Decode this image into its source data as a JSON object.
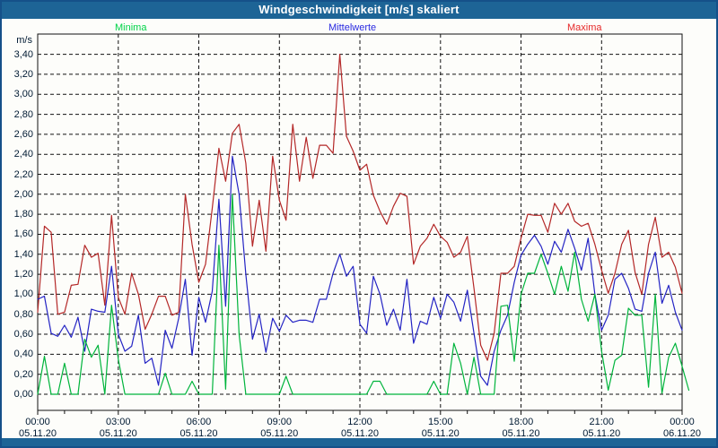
{
  "window": {
    "title": "Windgeschwindigkeit [m/s] skaliert"
  },
  "colors": {
    "titlebar_bg": "#1d6496",
    "frame_border": "#155089",
    "plot_bg": "#fdfdfa",
    "grid": "#111111",
    "axis_text": "#001a33",
    "title_text": "#ffffff"
  },
  "chart_data": {
    "type": "line",
    "title": "Windgeschwindigkeit [m/s] skaliert",
    "xlabel": "",
    "ylabel": "m/s",
    "ylim": [
      0,
      3.4
    ],
    "grid": "dashed",
    "legend_position": "top",
    "x_step_minutes": 15,
    "x_start": "05.11.20 00:00",
    "x_end": "06.11.20 00:00",
    "y_ticks": [
      {
        "label": "0,00",
        "value": 0.0
      },
      {
        "label": "0,20",
        "value": 0.2
      },
      {
        "label": "0,40",
        "value": 0.4
      },
      {
        "label": "0,60",
        "value": 0.6
      },
      {
        "label": "0,80",
        "value": 0.8
      },
      {
        "label": "1,00",
        "value": 1.0
      },
      {
        "label": "1,20",
        "value": 1.2
      },
      {
        "label": "1,40",
        "value": 1.4
      },
      {
        "label": "1,60",
        "value": 1.6
      },
      {
        "label": "1,80",
        "value": 1.8
      },
      {
        "label": "2,00",
        "value": 2.0
      },
      {
        "label": "2,20",
        "value": 2.2
      },
      {
        "label": "2,40",
        "value": 2.4
      },
      {
        "label": "2,60",
        "value": 2.6
      },
      {
        "label": "2,80",
        "value": 2.8
      },
      {
        "label": "3,00",
        "value": 3.0
      },
      {
        "label": "3,20",
        "value": 3.2
      },
      {
        "label": "3,40",
        "value": 3.4
      }
    ],
    "x_ticks": [
      {
        "time": "00:00",
        "date": "05.11.20",
        "hour": 0
      },
      {
        "time": "03:00",
        "date": "05.11.20",
        "hour": 3
      },
      {
        "time": "06:00",
        "date": "05.11.20",
        "hour": 6
      },
      {
        "time": "09:00",
        "date": "05.11.20",
        "hour": 9
      },
      {
        "time": "12:00",
        "date": "05.11.20",
        "hour": 12
      },
      {
        "time": "15:00",
        "date": "05.11.20",
        "hour": 15
      },
      {
        "time": "18:00",
        "date": "05.11.20",
        "hour": 18
      },
      {
        "time": "21:00",
        "date": "05.11.20",
        "hour": 21
      },
      {
        "time": "00:00",
        "date": "06.11.20",
        "hour": 24
      }
    ],
    "series": [
      {
        "name": "Maxima",
        "color": "#b42828",
        "legend_color": "#e62929",
        "values": [
          0.82,
          1.68,
          1.62,
          0.8,
          0.82,
          1.09,
          1.1,
          1.49,
          1.37,
          1.41,
          0.89,
          1.79,
          0.97,
          0.8,
          1.21,
          1.0,
          0.65,
          0.8,
          0.98,
          0.98,
          0.79,
          0.82,
          2.0,
          1.5,
          1.12,
          1.3,
          1.86,
          2.46,
          2.13,
          2.61,
          2.7,
          2.31,
          1.48,
          1.94,
          1.43,
          2.38,
          1.94,
          1.74,
          2.7,
          2.13,
          2.57,
          2.16,
          2.49,
          2.49,
          2.41,
          3.4,
          2.58,
          2.43,
          2.24,
          2.3,
          1.99,
          1.83,
          1.7,
          1.88,
          2.01,
          1.98,
          1.3,
          1.48,
          1.56,
          1.7,
          1.58,
          1.52,
          1.37,
          1.42,
          1.58,
          1.06,
          0.49,
          0.34,
          0.61,
          1.21,
          1.21,
          1.28,
          1.56,
          1.8,
          1.79,
          1.79,
          1.62,
          1.91,
          1.8,
          1.91,
          1.73,
          1.68,
          1.71,
          1.5,
          1.24,
          1.01,
          1.21,
          1.5,
          1.64,
          1.22,
          1.0,
          1.5,
          1.77,
          1.37,
          1.42,
          1.27,
          1.01
        ]
      },
      {
        "name": "Mittelwerte",
        "color": "#2424c4",
        "legend_color": "#2a2ae0",
        "values": [
          0.95,
          0.98,
          0.61,
          0.58,
          0.69,
          0.57,
          0.77,
          0.43,
          0.85,
          0.83,
          0.82,
          1.28,
          0.6,
          0.43,
          0.48,
          0.79,
          0.31,
          0.36,
          0.09,
          0.64,
          0.46,
          0.76,
          1.15,
          0.39,
          0.97,
          0.72,
          1.03,
          1.95,
          0.88,
          2.38,
          2.0,
          1.2,
          0.55,
          0.8,
          0.42,
          0.76,
          0.63,
          0.79,
          0.72,
          0.74,
          0.74,
          0.72,
          0.95,
          0.95,
          1.21,
          1.4,
          1.18,
          1.28,
          0.7,
          0.61,
          1.18,
          1.0,
          0.69,
          0.85,
          0.64,
          1.15,
          0.51,
          0.73,
          0.7,
          0.97,
          0.76,
          1.0,
          0.92,
          0.73,
          1.04,
          0.61,
          0.18,
          0.09,
          0.43,
          0.64,
          0.79,
          1.12,
          1.39,
          1.5,
          1.59,
          1.48,
          1.3,
          1.53,
          1.42,
          1.65,
          1.46,
          1.24,
          1.56,
          1.0,
          0.64,
          0.79,
          1.15,
          1.21,
          1.06,
          0.85,
          0.83,
          1.21,
          1.42,
          0.91,
          1.09,
          0.82,
          0.64
        ]
      },
      {
        "name": "Minima",
        "color": "#00b43c",
        "legend_color": "#00d348",
        "values": [
          0.0,
          0.38,
          0.0,
          0.0,
          0.31,
          0.0,
          0.0,
          0.55,
          0.37,
          0.49,
          0.0,
          0.89,
          0.35,
          0.0,
          0.0,
          0.0,
          0.0,
          0.0,
          0.0,
          0.21,
          0.0,
          0.0,
          0.0,
          0.13,
          0.0,
          0.0,
          0.0,
          1.49,
          0.05,
          2.0,
          0.6,
          0.0,
          0.0,
          0.0,
          0.0,
          0.0,
          0.0,
          0.18,
          0.0,
          0.0,
          0.0,
          0.0,
          0.0,
          0.0,
          0.0,
          0.0,
          0.0,
          0.0,
          0.0,
          0.0,
          0.13,
          0.13,
          0.0,
          0.0,
          0.0,
          0.0,
          0.0,
          0.0,
          0.0,
          0.13,
          0.0,
          0.0,
          0.51,
          0.31,
          0.0,
          0.37,
          0.0,
          0.0,
          0.0,
          0.88,
          0.89,
          0.33,
          1.0,
          1.21,
          1.21,
          1.4,
          1.21,
          1.0,
          1.28,
          1.03,
          1.42,
          0.95,
          0.73,
          1.0,
          0.43,
          0.04,
          0.34,
          0.39,
          0.86,
          0.79,
          0.79,
          0.07,
          1.0,
          0.01,
          0.37,
          0.51,
          0.28,
          0.04
        ]
      }
    ]
  }
}
